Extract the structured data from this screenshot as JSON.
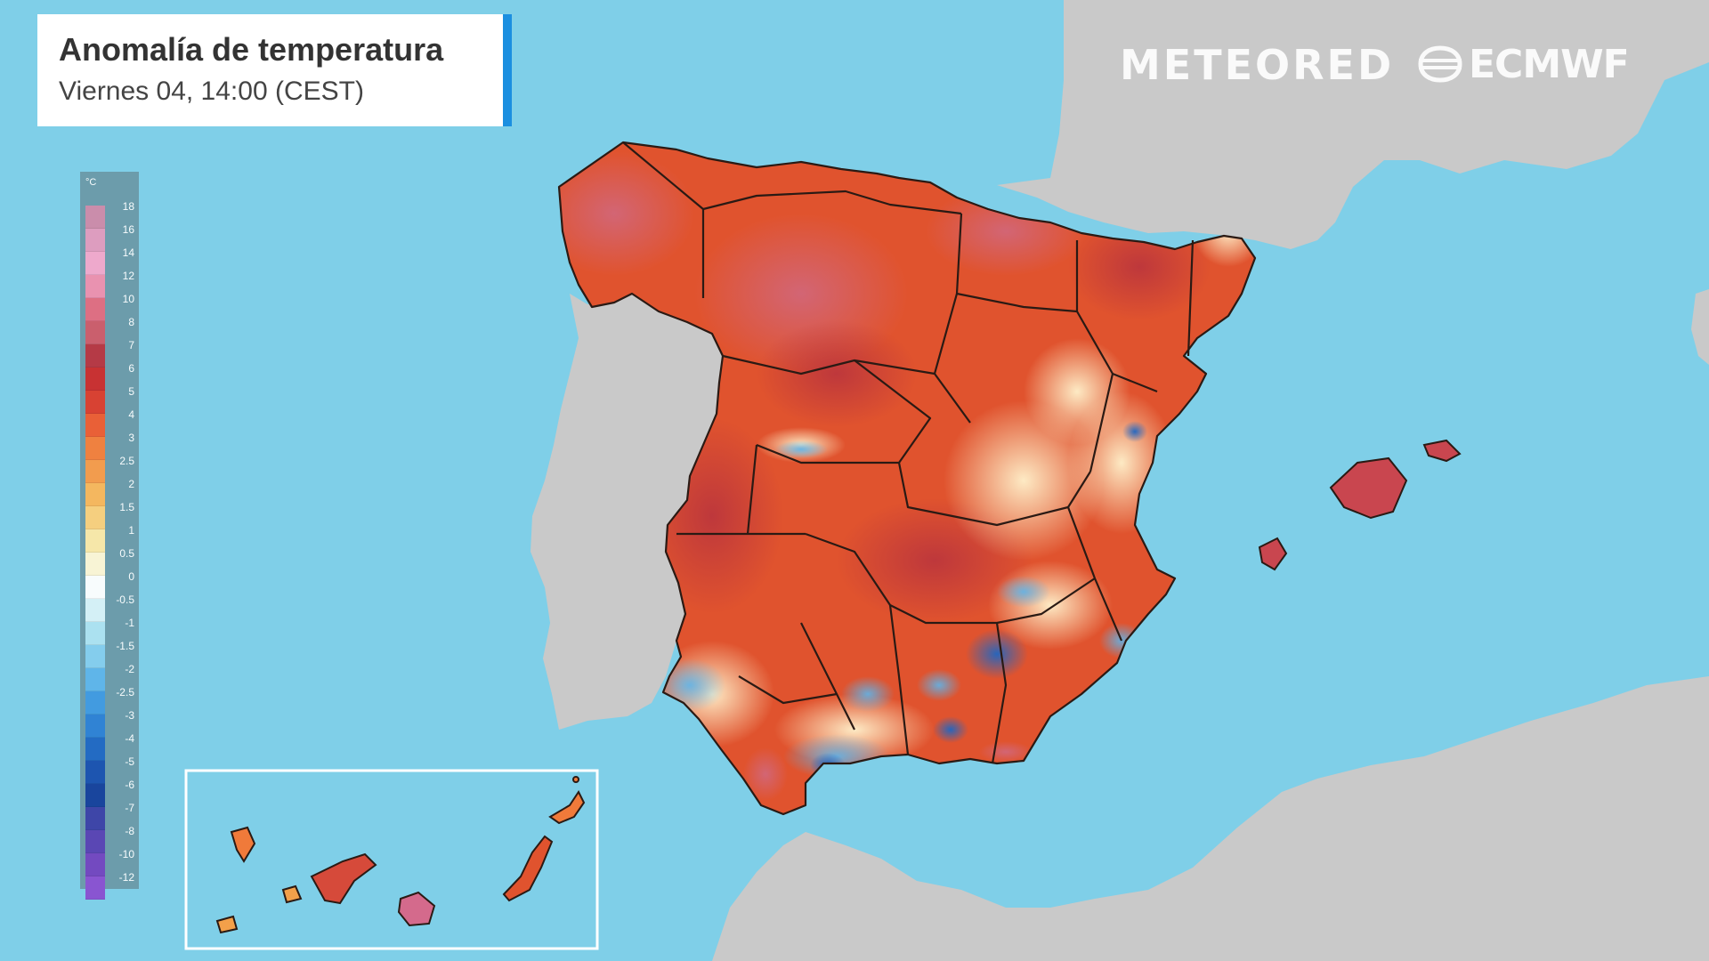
{
  "header": {
    "title": "Anomalía de temperatura",
    "subtitle": "Viernes 04, 14:00 (CEST)"
  },
  "logos": {
    "meteored": "METEORED",
    "ecmwf": "ECMWF"
  },
  "legend": {
    "unit": "°C",
    "stops": [
      {
        "label": "18",
        "color": "#cf8aa8"
      },
      {
        "label": "16",
        "color": "#e39bbd"
      },
      {
        "label": "14",
        "color": "#f4a8cb"
      },
      {
        "label": "12",
        "color": "#ef8fae"
      },
      {
        "label": "10",
        "color": "#e36a7e"
      },
      {
        "label": "8",
        "color": "#cf5a67"
      },
      {
        "label": "7",
        "color": "#b8333e"
      },
      {
        "label": "6",
        "color": "#cc2a2a"
      },
      {
        "label": "5",
        "color": "#dd3b2a"
      },
      {
        "label": "4",
        "color": "#ef5b2e"
      },
      {
        "label": "3",
        "color": "#f57d38"
      },
      {
        "label": "2.5",
        "color": "#f99a46"
      },
      {
        "label": "2",
        "color": "#fbb658"
      },
      {
        "label": "1.5",
        "color": "#fcd07a"
      },
      {
        "label": "1",
        "color": "#fde9a6"
      },
      {
        "label": "0.5",
        "color": "#fff6d4"
      },
      {
        "label": "0",
        "color": "#ffffff"
      },
      {
        "label": "-0.5",
        "color": "#d9f2f7"
      },
      {
        "label": "-1",
        "color": "#aee3f1"
      },
      {
        "label": "-1.5",
        "color": "#85cdee"
      },
      {
        "label": "-2",
        "color": "#5eb4ea"
      },
      {
        "label": "-2.5",
        "color": "#3f99e0"
      },
      {
        "label": "-3",
        "color": "#2c7fd3"
      },
      {
        "label": "-4",
        "color": "#1f66c2"
      },
      {
        "label": "-5",
        "color": "#184fae"
      },
      {
        "label": "-6",
        "color": "#143e9a"
      },
      {
        "label": "-7",
        "color": "#3b3fa5"
      },
      {
        "label": "-8",
        "color": "#5940b2"
      },
      {
        "label": "-10",
        "color": "#7343be"
      },
      {
        "label": "-12",
        "color": "#8a4fd0"
      }
    ]
  },
  "colors": {
    "sea": "#7fcfe8",
    "land_other": "#c8c8c8",
    "title_accent": "#1b8fe0"
  }
}
